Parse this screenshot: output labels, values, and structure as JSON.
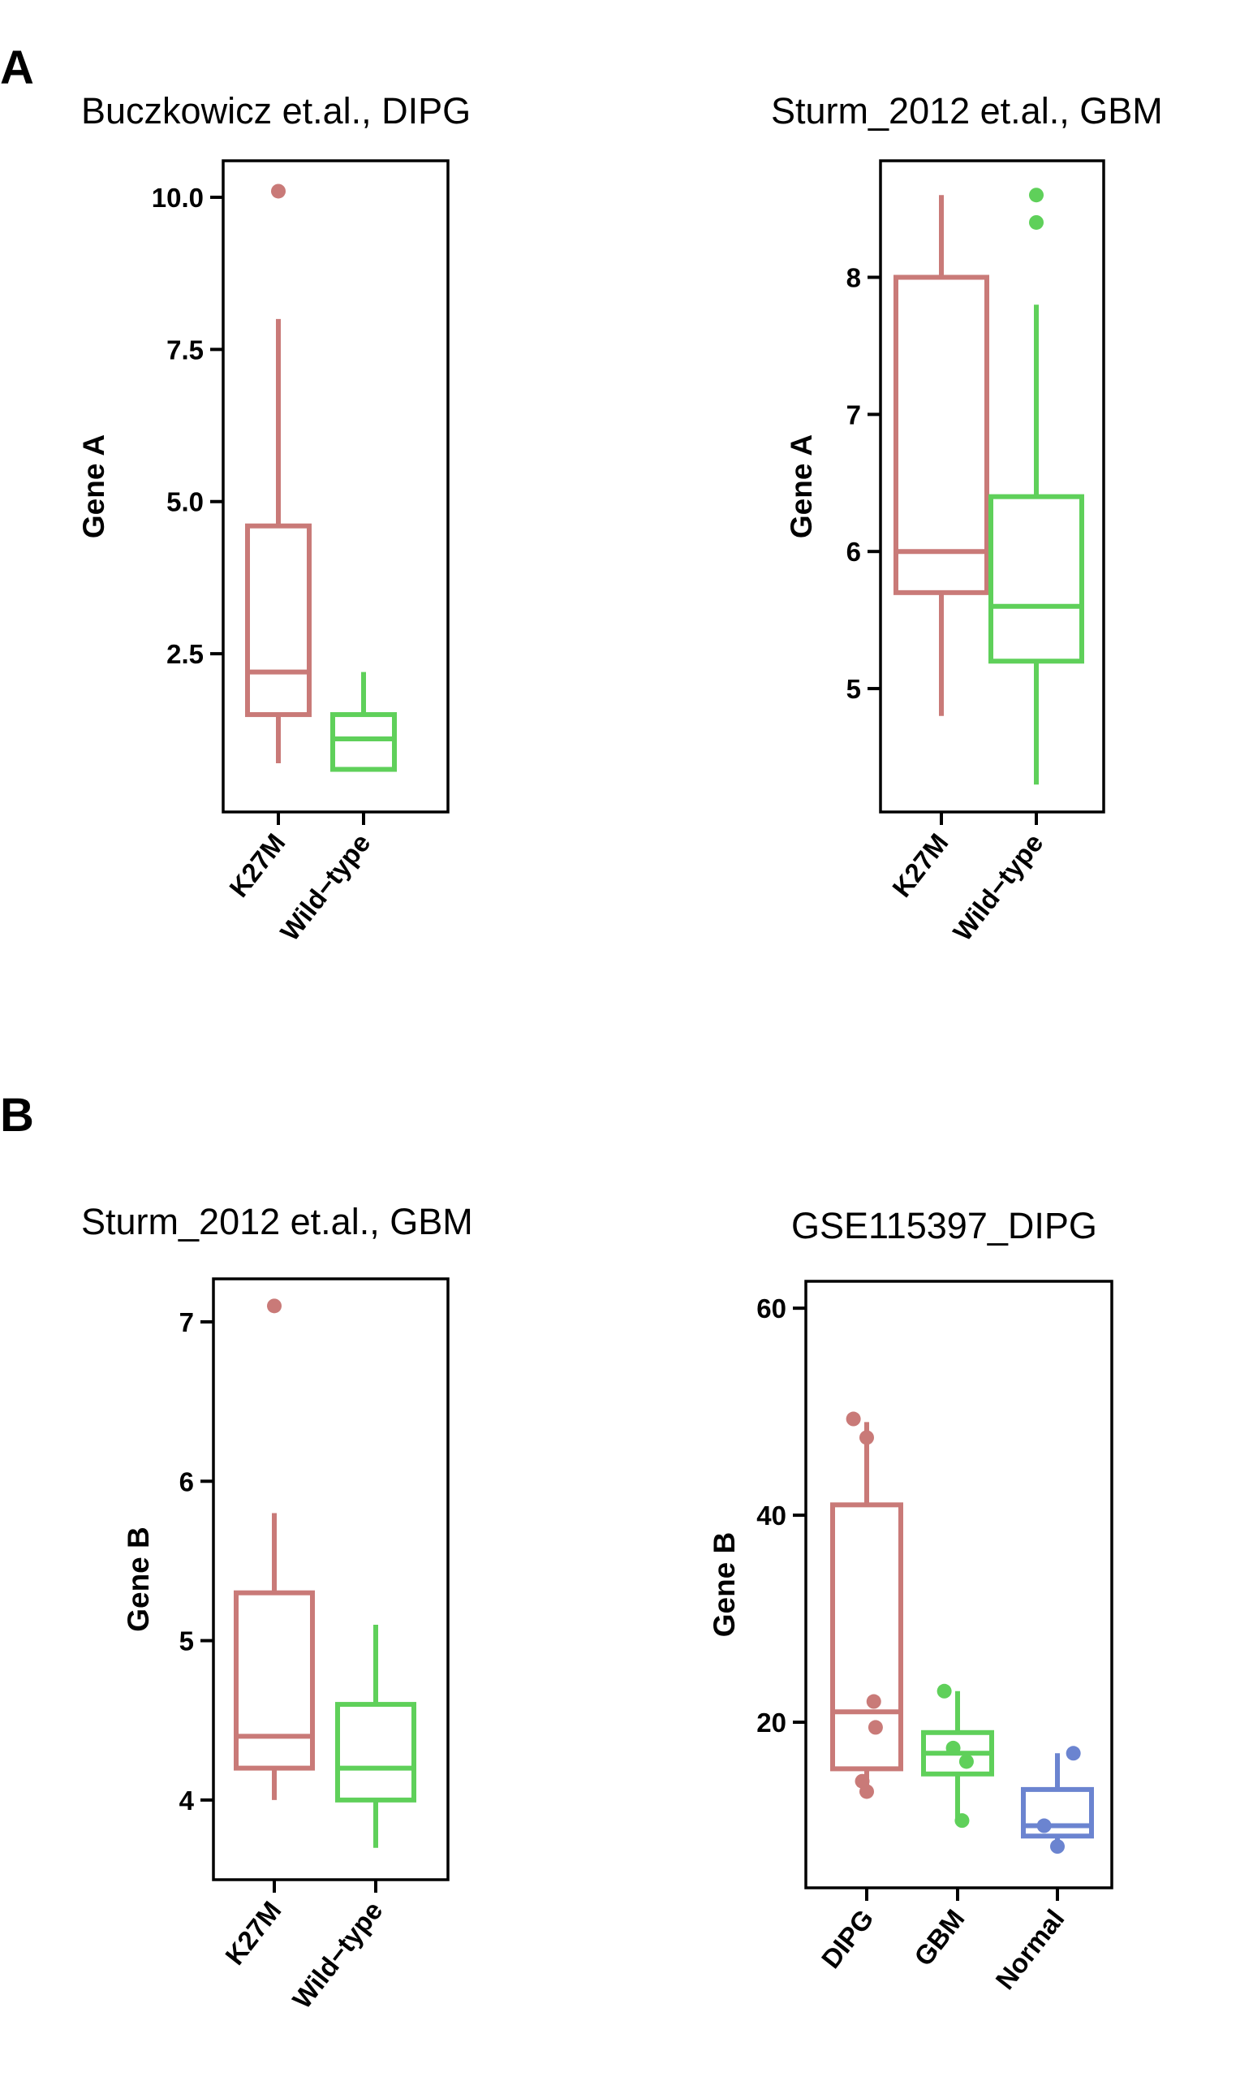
{
  "panels": {
    "a": "A",
    "b": "B"
  },
  "colors": {
    "red": "#C97A78",
    "green": "#5FD05A",
    "blue": "#6B84D0",
    "axis": "#000000"
  },
  "chart_data": [
    {
      "type": "box",
      "title": "Buczkowicz et.al., DIPG",
      "ylabel": "Gene A",
      "ylim": [
        -0.1,
        10.6
      ],
      "yticks": [
        2.5,
        5.0,
        7.5,
        10.0
      ],
      "ytick_labels": [
        "2.5",
        "5.0",
        "7.5",
        "10.0"
      ],
      "categories": [
        "K27M",
        "Wild−type"
      ],
      "boxes": [
        {
          "category": "K27M",
          "color": "red",
          "whisker_low": 0.7,
          "q1": 1.5,
          "median": 2.2,
          "q3": 4.6,
          "whisker_high": 8.0,
          "outliers": [
            10.1
          ],
          "points": []
        },
        {
          "category": "Wild−type",
          "color": "green",
          "whisker_low": 0.6,
          "q1": 0.6,
          "median": 1.1,
          "q3": 1.5,
          "whisker_high": 2.2,
          "outliers": [],
          "points": []
        }
      ]
    },
    {
      "type": "box",
      "title": "Sturm_2012 et.al., GBM",
      "ylabel": "Gene A",
      "ylim": [
        4.1,
        8.85
      ],
      "yticks": [
        5,
        6,
        7,
        8
      ],
      "ytick_labels": [
        "5",
        "6",
        "7",
        "8"
      ],
      "categories": [
        "K27M",
        "Wild−type"
      ],
      "boxes": [
        {
          "category": "K27M",
          "color": "red",
          "whisker_low": 4.8,
          "q1": 5.7,
          "median": 6.0,
          "q3": 8.0,
          "whisker_high": 8.6,
          "outliers": [],
          "points": []
        },
        {
          "category": "Wild−type",
          "color": "green",
          "whisker_low": 4.3,
          "q1": 5.2,
          "median": 5.6,
          "q3": 6.4,
          "whisker_high": 7.8,
          "outliers": [
            8.4,
            8.6
          ],
          "points": []
        }
      ]
    },
    {
      "type": "box",
      "title": "Sturm_2012 et.al., GBM",
      "ylabel": "Gene B",
      "ylim": [
        3.5,
        7.27
      ],
      "yticks": [
        4,
        5,
        6,
        7
      ],
      "ytick_labels": [
        "4",
        "5",
        "6",
        "7"
      ],
      "categories": [
        "K27M",
        "Wild−type"
      ],
      "boxes": [
        {
          "category": "K27M",
          "color": "red",
          "whisker_low": 4.0,
          "q1": 4.2,
          "median": 4.4,
          "q3": 5.3,
          "whisker_high": 5.8,
          "outliers": [
            7.1
          ],
          "points": []
        },
        {
          "category": "Wild−type",
          "color": "green",
          "whisker_low": 3.7,
          "q1": 4.0,
          "median": 4.2,
          "q3": 4.6,
          "whisker_high": 5.1,
          "outliers": [],
          "points": []
        }
      ]
    },
    {
      "type": "box",
      "title": "GSE115397_DIPG",
      "ylabel": "Gene B",
      "ylim": [
        4,
        62.6
      ],
      "yticks": [
        20,
        40,
        60
      ],
      "ytick_labels": [
        "20",
        "40",
        "60"
      ],
      "categories": [
        "DIPG",
        "GBM",
        "Normal"
      ],
      "boxes": [
        {
          "category": "DIPG",
          "color": "red",
          "whisker_low": 13.0,
          "q1": 15.5,
          "median": 21.0,
          "q3": 41.0,
          "whisker_high": 49.0,
          "outliers": [],
          "points": [
            [
              -0.15,
              49.3
            ],
            [
              0.0,
              47.5
            ],
            [
              0.08,
              22.0
            ],
            [
              0.1,
              19.5
            ],
            [
              -0.05,
              14.3
            ],
            [
              0.0,
              13.3
            ]
          ]
        },
        {
          "category": "GBM",
          "color": "green",
          "whisker_low": 10.5,
          "q1": 15.0,
          "median": 17.0,
          "q3": 19.0,
          "whisker_high": 23.0,
          "outliers": [],
          "points": [
            [
              -0.15,
              23.0
            ],
            [
              -0.05,
              17.5
            ],
            [
              0.1,
              16.2
            ],
            [
              0.05,
              10.5
            ]
          ]
        },
        {
          "category": "Normal",
          "color": "blue",
          "whisker_low": 8.0,
          "q1": 9.0,
          "median": 10.0,
          "q3": 13.5,
          "whisker_high": 17.0,
          "outliers": [],
          "points": [
            [
              0.18,
              17.0
            ],
            [
              -0.15,
              10.0
            ],
            [
              0.0,
              8.0
            ]
          ]
        }
      ]
    }
  ]
}
